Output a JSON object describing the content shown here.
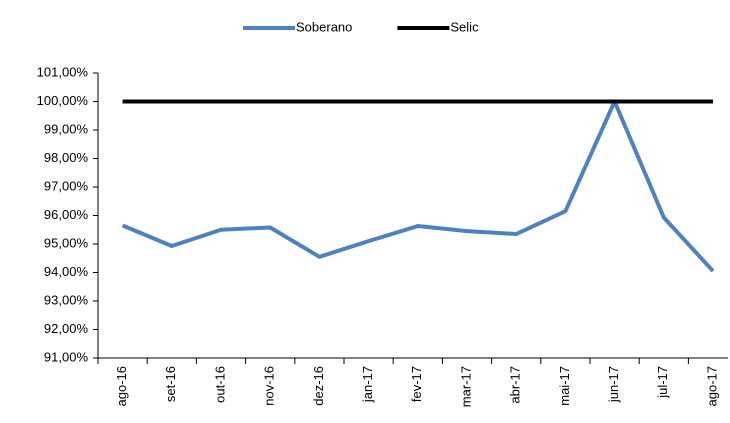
{
  "chart_data": {
    "type": "line",
    "categories": [
      "ago-16",
      "set-16",
      "out-16",
      "nov-16",
      "dez-16",
      "jan-17",
      "fev-17",
      "mar-17",
      "abr-17",
      "mai-17",
      "jun-17",
      "jul-17",
      "ago-17"
    ],
    "series": [
      {
        "name": "Soberano",
        "color": "#4f81bd",
        "values": [
          95.65,
          94.93,
          95.5,
          95.58,
          94.55,
          95.1,
          95.63,
          95.45,
          95.35,
          96.15,
          100.0,
          95.93,
          94.05
        ]
      },
      {
        "name": "Selic",
        "color": "#000000",
        "values": [
          100,
          100,
          100,
          100,
          100,
          100,
          100,
          100,
          100,
          100,
          100,
          100,
          100
        ]
      }
    ],
    "ylim": [
      91,
      101
    ],
    "yticks": [
      {
        "value": 91,
        "label": "91,00%"
      },
      {
        "value": 92,
        "label": "92,00%"
      },
      {
        "value": 93,
        "label": "93,00%"
      },
      {
        "value": 94,
        "label": "94,00%"
      },
      {
        "value": 95,
        "label": "95,00%"
      },
      {
        "value": 96,
        "label": "96,00%"
      },
      {
        "value": 97,
        "label": "97,00%"
      },
      {
        "value": 98,
        "label": "98,00%"
      },
      {
        "value": 99,
        "label": "99,00%"
      },
      {
        "value": 100,
        "label": "100,00%"
      },
      {
        "value": 101,
        "label": "101,00%"
      }
    ],
    "legend": "top",
    "grid": false
  }
}
